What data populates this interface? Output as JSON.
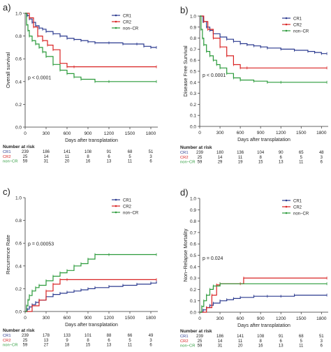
{
  "colors": {
    "CR1": "#2b3a8f",
    "CR2": "#d92323",
    "non-CR": "#2a9a3a",
    "axis": "#333333",
    "text": "#222222"
  },
  "risk_header": "Number at risk",
  "risk_labels": [
    "CR1",
    "CR2",
    "non−CR"
  ],
  "chart_data": [
    {
      "type": "line",
      "panel": "a)",
      "ylabel": "Overall survival",
      "xlabel": "Days after transplatation",
      "xlim": [
        0,
        1900
      ],
      "ylim": [
        0,
        1
      ],
      "xticks": [
        0,
        300,
        600,
        900,
        1200,
        1500,
        1800
      ],
      "yticks": [
        0.0,
        0.2,
        0.4,
        0.6,
        0.8,
        1.0
      ],
      "ytick_labels": [
        "0.0",
        "0.2",
        "0.4",
        "0.6",
        "0.8",
        "1.0"
      ],
      "pvalue": "p < 0.0001",
      "legend": [
        "CR1",
        "CR2",
        "non−CR"
      ],
      "series": [
        {
          "name": "CR1",
          "x": [
            0,
            30,
            60,
            100,
            150,
            200,
            250,
            300,
            400,
            500,
            600,
            700,
            800,
            900,
            1000,
            1200,
            1400,
            1600,
            1700,
            1800,
            1880
          ],
          "y": [
            1.0,
            0.98,
            0.95,
            0.92,
            0.89,
            0.87,
            0.86,
            0.84,
            0.82,
            0.8,
            0.78,
            0.77,
            0.76,
            0.75,
            0.74,
            0.74,
            0.73,
            0.73,
            0.71,
            0.7,
            0.7
          ]
        },
        {
          "name": "CR2",
          "x": [
            0,
            60,
            120,
            180,
            250,
            320,
            400,
            500,
            600,
            700,
            1880
          ],
          "y": [
            1.0,
            0.96,
            0.88,
            0.8,
            0.76,
            0.72,
            0.68,
            0.56,
            0.53,
            0.53,
            0.53
          ]
        },
        {
          "name": "non−CR",
          "x": [
            0,
            20,
            40,
            60,
            100,
            150,
            200,
            250,
            300,
            400,
            500,
            600,
            700,
            800,
            1000,
            1200,
            1880
          ],
          "y": [
            1.0,
            0.9,
            0.85,
            0.8,
            0.76,
            0.73,
            0.7,
            0.66,
            0.62,
            0.55,
            0.5,
            0.47,
            0.44,
            0.42,
            0.4,
            0.4,
            0.4
          ]
        }
      ],
      "risk": [
        [
          "239",
          "186",
          "141",
          "108",
          "91",
          "68",
          "51"
        ],
        [
          "25",
          "14",
          "11",
          "8",
          "6",
          "5",
          "3"
        ],
        [
          "59",
          "31",
          "20",
          "16",
          "13",
          "11",
          "6"
        ]
      ]
    },
    {
      "type": "line",
      "panel": "b)",
      "ylabel": "Disease Free Survival",
      "xlabel": "Days after transplatation",
      "xlim": [
        0,
        1900
      ],
      "ylim": [
        0,
        1
      ],
      "xticks": [
        0,
        300,
        600,
        900,
        1200,
        1500,
        1800
      ],
      "yticks": [
        0.0,
        0.1,
        0.2,
        0.3,
        0.4,
        0.5,
        0.6,
        0.7,
        0.8,
        0.9,
        1.0
      ],
      "ytick_labels": [
        "0.0",
        "0.1",
        "0.2",
        "0.3",
        "0.4",
        "0.5",
        "0.6",
        "0.7",
        "0.8",
        "0.9",
        "1.0"
      ],
      "pvalue": "p < 0.0001",
      "legend": [
        "CR1",
        "CR2",
        "non−CR"
      ],
      "series": [
        {
          "name": "CR1",
          "x": [
            0,
            50,
            100,
            150,
            200,
            300,
            400,
            500,
            600,
            700,
            800,
            900,
            1000,
            1200,
            1400,
            1600,
            1700,
            1800,
            1880
          ],
          "y": [
            1.0,
            0.95,
            0.9,
            0.87,
            0.84,
            0.81,
            0.79,
            0.77,
            0.75,
            0.74,
            0.73,
            0.72,
            0.71,
            0.7,
            0.69,
            0.68,
            0.67,
            0.66,
            0.66
          ]
        },
        {
          "name": "CR2",
          "x": [
            0,
            60,
            120,
            200,
            300,
            400,
            500,
            600,
            700,
            1880
          ],
          "y": [
            1.0,
            0.95,
            0.88,
            0.8,
            0.72,
            0.64,
            0.56,
            0.53,
            0.53,
            0.53
          ]
        },
        {
          "name": "non−CR",
          "x": [
            0,
            20,
            40,
            60,
            100,
            150,
            200,
            250,
            300,
            400,
            500,
            600,
            800,
            1000,
            1200,
            1880
          ],
          "y": [
            1.0,
            0.88,
            0.8,
            0.74,
            0.68,
            0.64,
            0.6,
            0.56,
            0.53,
            0.48,
            0.44,
            0.42,
            0.41,
            0.4,
            0.4,
            0.4
          ]
        }
      ],
      "risk": [
        [
          "239",
          "180",
          "136",
          "104",
          "90",
          "65",
          "48"
        ],
        [
          "25",
          "14",
          "11",
          "8",
          "6",
          "5",
          "3"
        ],
        [
          "59",
          "29",
          "19",
          "15",
          "13",
          "11",
          "6"
        ]
      ]
    },
    {
      "type": "line",
      "panel": "c)",
      "ylabel": "Recurrence Rate",
      "xlabel": "Days after transplatation",
      "xlim": [
        0,
        1900
      ],
      "ylim": [
        0,
        1
      ],
      "xticks": [
        0,
        300,
        600,
        900,
        1200,
        1500,
        1800
      ],
      "yticks": [
        0.0,
        0.2,
        0.4,
        0.6,
        0.8,
        1.0
      ],
      "ytick_labels": [
        "0.0",
        "0.2",
        "0.4",
        "0.6",
        "0.8",
        "1.0"
      ],
      "pvalue": "p = 0.00053",
      "legend": [
        "CR1",
        "CR2",
        "non−CR"
      ],
      "series": [
        {
          "name": "CR1",
          "x": [
            0,
            30,
            60,
            100,
            150,
            200,
            300,
            400,
            500,
            600,
            700,
            800,
            900,
            1000,
            1200,
            1400,
            1600,
            1800,
            1880
          ],
          "y": [
            0.0,
            0.02,
            0.04,
            0.06,
            0.08,
            0.1,
            0.13,
            0.15,
            0.16,
            0.17,
            0.18,
            0.19,
            0.2,
            0.21,
            0.22,
            0.23,
            0.24,
            0.25,
            0.26
          ]
        },
        {
          "name": "CR2",
          "x": [
            0,
            100,
            200,
            300,
            400,
            500,
            600,
            1880
          ],
          "y": [
            0.0,
            0.05,
            0.1,
            0.18,
            0.24,
            0.28,
            0.28,
            0.28
          ]
        },
        {
          "name": "non−CR",
          "x": [
            0,
            20,
            40,
            60,
            100,
            150,
            200,
            300,
            400,
            500,
            600,
            700,
            800,
            900,
            1000,
            1200,
            1880
          ],
          "y": [
            0.0,
            0.05,
            0.1,
            0.14,
            0.18,
            0.21,
            0.23,
            0.27,
            0.31,
            0.34,
            0.36,
            0.4,
            0.42,
            0.46,
            0.5,
            0.5,
            0.5
          ]
        }
      ],
      "risk": [
        [
          "239",
          "178",
          "133",
          "101",
          "88",
          "66",
          "49"
        ],
        [
          "25",
          "13",
          "9",
          "8",
          "6",
          "5",
          "3"
        ],
        [
          "59",
          "27",
          "18",
          "15",
          "13",
          "11",
          "6"
        ]
      ]
    },
    {
      "type": "line",
      "panel": "d)",
      "ylabel": "Non−Relapse Mortality",
      "xlabel": "Days after transplatation",
      "xlim": [
        0,
        1900
      ],
      "ylim": [
        0,
        1
      ],
      "xticks": [
        0,
        300,
        600,
        900,
        1200,
        1500,
        1800
      ],
      "yticks": [
        0.0,
        0.1,
        0.2,
        0.3,
        0.4,
        0.5,
        0.6,
        0.7,
        0.8,
        0.9,
        1.0
      ],
      "ytick_labels": [
        "0.0",
        "0.1",
        "0.2",
        "0.3",
        "0.4",
        "0.5",
        "0.6",
        "0.7",
        "0.8",
        "0.9",
        "1.0"
      ],
      "pvalue": "p = 0.024",
      "legend": [
        "CR1",
        "CR2",
        "non−CR"
      ],
      "series": [
        {
          "name": "CR1",
          "x": [
            0,
            50,
            100,
            150,
            200,
            300,
            400,
            500,
            600,
            800,
            1000,
            1200,
            1400,
            1880
          ],
          "y": [
            0.0,
            0.02,
            0.04,
            0.06,
            0.08,
            0.1,
            0.11,
            0.12,
            0.13,
            0.14,
            0.14,
            0.14,
            0.15,
            0.15
          ]
        },
        {
          "name": "CR2",
          "x": [
            0,
            100,
            180,
            250,
            300,
            600,
            650,
            1880
          ],
          "y": [
            0.0,
            0.04,
            0.15,
            0.24,
            0.25,
            0.25,
            0.3,
            0.3
          ]
        },
        {
          "name": "non−CR",
          "x": [
            0,
            30,
            60,
            100,
            150,
            200,
            300,
            1880
          ],
          "y": [
            0.0,
            0.05,
            0.1,
            0.15,
            0.2,
            0.23,
            0.25,
            0.25
          ]
        }
      ],
      "risk": [
        [
          "239",
          "186",
          "141",
          "108",
          "91",
          "68",
          "51"
        ],
        [
          "25",
          "14",
          "11",
          "8",
          "6",
          "5",
          "3"
        ],
        [
          "59",
          "31",
          "20",
          "16",
          "13",
          "11",
          "6"
        ]
      ]
    }
  ]
}
